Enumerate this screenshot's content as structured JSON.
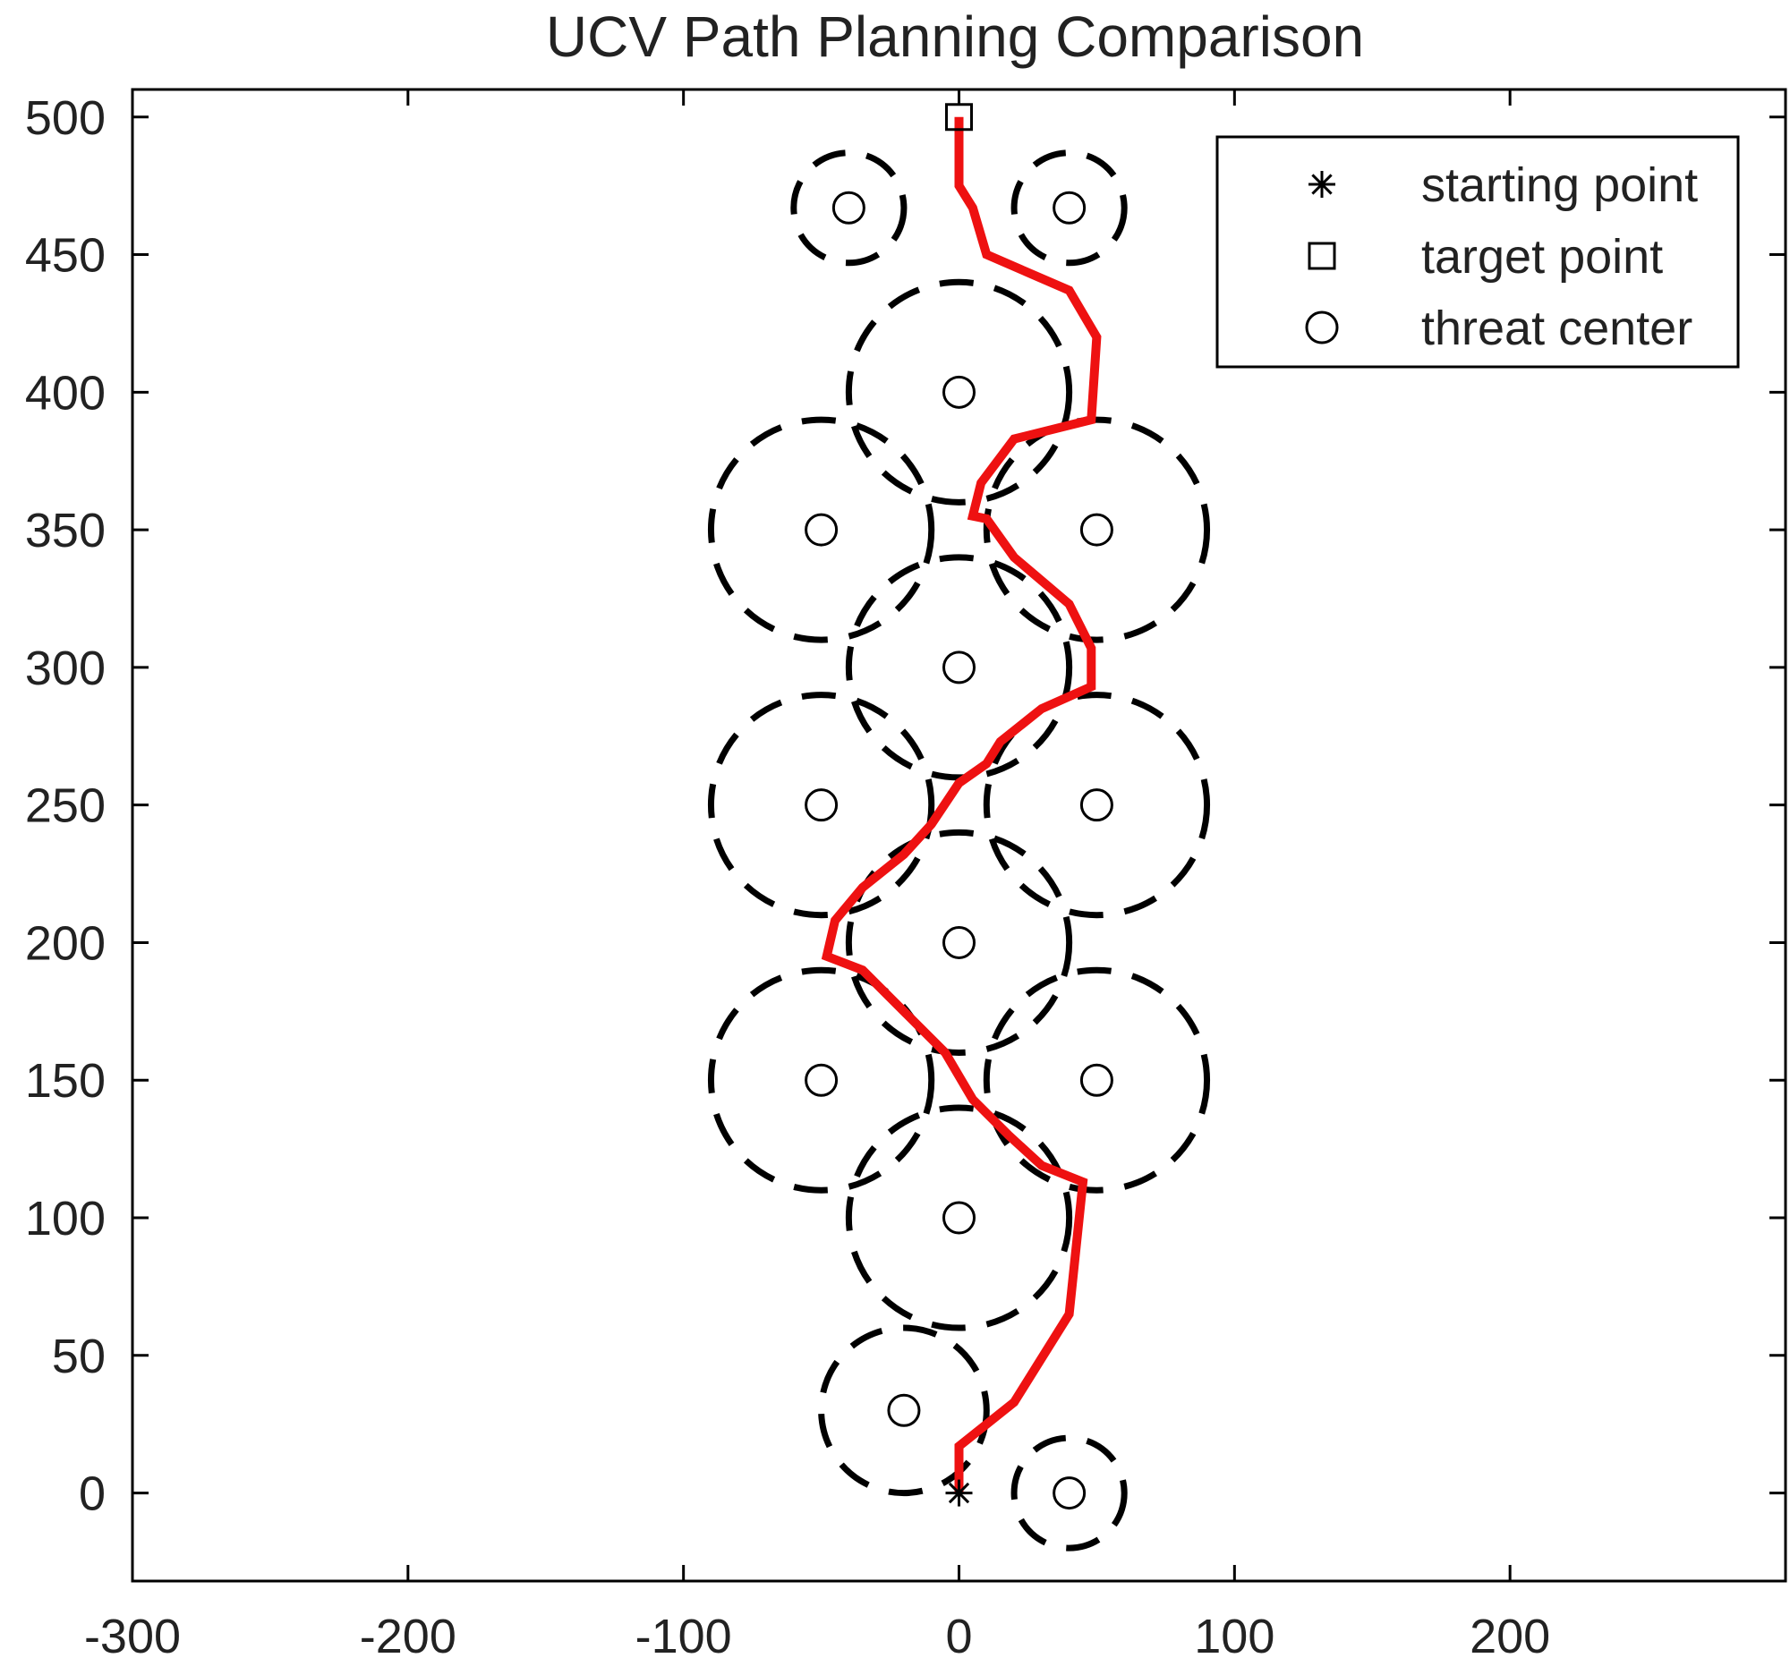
{
  "chart_data": {
    "type": "scatter",
    "title": "UCV Path Planning Comparison",
    "xlabel": "",
    "ylabel": "",
    "xlim": [
      -300,
      300
    ],
    "ylim": [
      -32,
      510
    ],
    "x_ticks": [
      -300,
      -200,
      -100,
      0,
      100,
      200
    ],
    "y_ticks": [
      0,
      50,
      100,
      150,
      200,
      250,
      300,
      350,
      400,
      450,
      500
    ],
    "grid": false,
    "legend_position": "top-right",
    "legend": [
      {
        "marker": "asterisk",
        "label": "starting point"
      },
      {
        "marker": "square",
        "label": "target point"
      },
      {
        "marker": "circle",
        "label": "threat center"
      }
    ],
    "starting_point": {
      "x": 0,
      "y": 0
    },
    "target_point": {
      "x": 0,
      "y": 500
    },
    "threats": [
      {
        "x": 40,
        "y": 0,
        "radius": 20
      },
      {
        "x": -20,
        "y": 30,
        "radius": 30
      },
      {
        "x": 0,
        "y": 100,
        "radius": 40
      },
      {
        "x": -50,
        "y": 150,
        "radius": 40
      },
      {
        "x": 50,
        "y": 150,
        "radius": 40
      },
      {
        "x": 0,
        "y": 200,
        "radius": 40
      },
      {
        "x": -50,
        "y": 250,
        "radius": 40
      },
      {
        "x": 50,
        "y": 250,
        "radius": 40
      },
      {
        "x": 0,
        "y": 300,
        "radius": 40
      },
      {
        "x": -50,
        "y": 350,
        "radius": 40
      },
      {
        "x": 50,
        "y": 350,
        "radius": 40
      },
      {
        "x": 0,
        "y": 400,
        "radius": 40
      },
      {
        "x": -40,
        "y": 467,
        "radius": 20
      },
      {
        "x": 40,
        "y": 467,
        "radius": 20
      }
    ],
    "path": {
      "color": "#ee1111",
      "x": [
        0,
        0,
        20,
        40,
        45,
        45,
        30,
        18,
        5,
        -5,
        -20,
        -35,
        -48,
        -45,
        -35,
        -20,
        -10,
        0,
        10,
        15,
        30,
        48,
        48,
        40,
        20,
        10,
        5,
        8,
        20,
        48,
        50,
        50,
        40,
        10,
        5,
        0,
        0
      ],
      "y": [
        0,
        17,
        33,
        65,
        113,
        113,
        119,
        130,
        143,
        160,
        175,
        190,
        195,
        208,
        220,
        232,
        243,
        258,
        265,
        273,
        285,
        293,
        307,
        323,
        340,
        354,
        355,
        367,
        383,
        390,
        420,
        420,
        437,
        450,
        467,
        475,
        500
      ]
    },
    "colors": {
      "path": "#ee1111",
      "threat_boundary": "#000000",
      "marker": "#000000",
      "text": "#222222"
    }
  }
}
